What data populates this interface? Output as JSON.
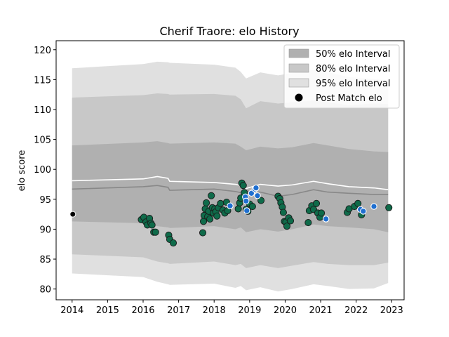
{
  "chart_data": {
    "type": "scatter",
    "title": "Cherif Traore: elo History",
    "xlabel": "",
    "ylabel": "elo score",
    "xlim": [
      2013.55,
      2023.35
    ],
    "ylim": [
      78.2,
      121.5
    ],
    "x_ticks": [
      "2014",
      "2015",
      "2016",
      "2017",
      "2018",
      "2019",
      "2020",
      "2021",
      "2022",
      "2023"
    ],
    "y_ticks": [
      "80",
      "85",
      "90",
      "95",
      "100",
      "105",
      "110",
      "115",
      "120"
    ],
    "legend_position": "top-right",
    "legend": [
      {
        "label": "50% elo Interval",
        "color": "#b0b0b0"
      },
      {
        "label": "80% elo Interval",
        "color": "#c8c8c8"
      },
      {
        "label": "95% elo Interval",
        "color": "#e0e0e0"
      },
      {
        "label": "Post Match elo",
        "color": "#000000"
      }
    ],
    "colors": {
      "band_50": "#b0b0b0",
      "band_80": "#c8c8c8",
      "band_95": "#e0e0e0",
      "median_line": "#888888",
      "upper_line": "#ffffff",
      "point_green": "#0f6b4a",
      "point_blue": "#1f6fd0"
    },
    "band_x": [
      2014.0,
      2016.0,
      2016.4,
      2016.7,
      2016.75,
      2018.0,
      2018.6,
      2018.75,
      2018.9,
      2019.3,
      2019.8,
      2020.2,
      2020.8,
      2021.2,
      2021.8,
      2022.5,
      2022.9
    ],
    "median": [
      96.7,
      97.1,
      97.3,
      97.0,
      96.5,
      96.7,
      96.3,
      96.1,
      96.4,
      96.2,
      95.5,
      95.8,
      96.6,
      96.2,
      96.0,
      95.8,
      95.8
    ],
    "upper_white": [
      98.1,
      98.4,
      98.8,
      98.5,
      98.0,
      97.8,
      97.5,
      97.3,
      96.8,
      97.5,
      97.2,
      97.4,
      98.0,
      97.6,
      97.1,
      96.9,
      96.6
    ],
    "band_50": [
      [
        91.3,
        104.0
      ],
      [
        91.0,
        104.5
      ],
      [
        90.5,
        104.7
      ],
      [
        90.3,
        104.4
      ],
      [
        90.2,
        104.3
      ],
      [
        90.5,
        104.5
      ],
      [
        90.0,
        104.3
      ],
      [
        90.3,
        103.8
      ],
      [
        89.5,
        103.2
      ],
      [
        90.0,
        103.8
      ],
      [
        89.6,
        103.5
      ],
      [
        90.0,
        103.7
      ],
      [
        90.8,
        104.4
      ],
      [
        90.5,
        104.0
      ],
      [
        90.3,
        103.4
      ],
      [
        90.0,
        103.0
      ],
      [
        89.5,
        102.9
      ]
    ],
    "band_80": [
      [
        85.8,
        112.0
      ],
      [
        85.3,
        112.4
      ],
      [
        84.6,
        112.7
      ],
      [
        84.3,
        112.6
      ],
      [
        84.2,
        112.5
      ],
      [
        84.6,
        112.6
      ],
      [
        84.0,
        112.3
      ],
      [
        84.2,
        111.7
      ],
      [
        83.5,
        110.2
      ],
      [
        84.0,
        111.4
      ],
      [
        83.5,
        111.0
      ],
      [
        83.9,
        111.2
      ],
      [
        84.5,
        111.5
      ],
      [
        84.2,
        111.2
      ],
      [
        84.0,
        110.7
      ],
      [
        84.0,
        111.0
      ],
      [
        84.4,
        110.9
      ]
    ],
    "band_95": [
      [
        82.6,
        116.9
      ],
      [
        82.0,
        117.6
      ],
      [
        81.2,
        118.0
      ],
      [
        80.8,
        117.9
      ],
      [
        80.7,
        117.8
      ],
      [
        80.9,
        117.5
      ],
      [
        80.2,
        117.0
      ],
      [
        80.5,
        116.3
      ],
      [
        79.8,
        115.2
      ],
      [
        80.3,
        116.2
      ],
      [
        79.6,
        115.7
      ],
      [
        80.0,
        116.1
      ],
      [
        80.8,
        116.6
      ],
      [
        80.5,
        116.3
      ],
      [
        80.0,
        115.4
      ],
      [
        80.1,
        115.1
      ],
      [
        81.0,
        114.9
      ]
    ],
    "points_black": [
      {
        "x": 2014.02,
        "y": 92.5
      }
    ],
    "points_green": [
      {
        "x": 2015.95,
        "y": 91.6
      },
      {
        "x": 2016.02,
        "y": 92.0
      },
      {
        "x": 2016.08,
        "y": 91.2
      },
      {
        "x": 2016.12,
        "y": 90.7
      },
      {
        "x": 2016.18,
        "y": 91.8
      },
      {
        "x": 2016.22,
        "y": 91.0
      },
      {
        "x": 2016.25,
        "y": 90.7
      },
      {
        "x": 2016.3,
        "y": 89.5
      },
      {
        "x": 2016.35,
        "y": 89.5
      },
      {
        "x": 2016.72,
        "y": 89.0
      },
      {
        "x": 2016.75,
        "y": 88.3
      },
      {
        "x": 2016.85,
        "y": 87.7
      },
      {
        "x": 2017.68,
        "y": 89.4
      },
      {
        "x": 2017.7,
        "y": 91.3
      },
      {
        "x": 2017.72,
        "y": 92.3
      },
      {
        "x": 2017.75,
        "y": 93.4
      },
      {
        "x": 2017.78,
        "y": 94.4
      },
      {
        "x": 2017.82,
        "y": 92.1
      },
      {
        "x": 2017.85,
        "y": 93.0
      },
      {
        "x": 2017.88,
        "y": 91.7
      },
      {
        "x": 2017.92,
        "y": 95.6
      },
      {
        "x": 2017.95,
        "y": 93.6
      },
      {
        "x": 2017.98,
        "y": 92.7
      },
      {
        "x": 2018.02,
        "y": 93.4
      },
      {
        "x": 2018.05,
        "y": 92.9
      },
      {
        "x": 2018.08,
        "y": 92.2
      },
      {
        "x": 2018.12,
        "y": 93.6
      },
      {
        "x": 2018.18,
        "y": 94.3
      },
      {
        "x": 2018.25,
        "y": 93.2
      },
      {
        "x": 2018.3,
        "y": 92.7
      },
      {
        "x": 2018.35,
        "y": 94.5
      },
      {
        "x": 2018.38,
        "y": 93.1
      },
      {
        "x": 2018.68,
        "y": 93.4
      },
      {
        "x": 2018.72,
        "y": 94.4
      },
      {
        "x": 2018.75,
        "y": 95.2
      },
      {
        "x": 2018.78,
        "y": 97.7
      },
      {
        "x": 2018.82,
        "y": 97.3
      },
      {
        "x": 2018.85,
        "y": 96.1
      },
      {
        "x": 2018.9,
        "y": 93.3
      },
      {
        "x": 2018.95,
        "y": 93.0
      },
      {
        "x": 2019.0,
        "y": 94.2
      },
      {
        "x": 2019.08,
        "y": 93.8
      },
      {
        "x": 2019.32,
        "y": 94.8
      },
      {
        "x": 2019.8,
        "y": 95.5
      },
      {
        "x": 2019.85,
        "y": 95.1
      },
      {
        "x": 2019.88,
        "y": 94.4
      },
      {
        "x": 2019.92,
        "y": 93.7
      },
      {
        "x": 2019.95,
        "y": 92.8
      },
      {
        "x": 2019.98,
        "y": 91.3
      },
      {
        "x": 2020.02,
        "y": 91.2
      },
      {
        "x": 2020.05,
        "y": 90.5
      },
      {
        "x": 2020.1,
        "y": 91.9
      },
      {
        "x": 2020.15,
        "y": 91.4
      },
      {
        "x": 2020.65,
        "y": 91.1
      },
      {
        "x": 2020.68,
        "y": 93.1
      },
      {
        "x": 2020.75,
        "y": 93.9
      },
      {
        "x": 2020.8,
        "y": 93.3
      },
      {
        "x": 2020.88,
        "y": 94.3
      },
      {
        "x": 2020.92,
        "y": 92.7
      },
      {
        "x": 2020.98,
        "y": 92.0
      },
      {
        "x": 2021.02,
        "y": 92.7
      },
      {
        "x": 2021.75,
        "y": 92.8
      },
      {
        "x": 2021.8,
        "y": 93.4
      },
      {
        "x": 2021.95,
        "y": 93.8
      },
      {
        "x": 2022.05,
        "y": 94.3
      },
      {
        "x": 2022.15,
        "y": 92.4
      },
      {
        "x": 2022.92,
        "y": 93.6
      }
    ],
    "points_blue": [
      {
        "x": 2018.45,
        "y": 93.9
      },
      {
        "x": 2018.88,
        "y": 95.4
      },
      {
        "x": 2018.9,
        "y": 94.7
      },
      {
        "x": 2018.92,
        "y": 93.1
      },
      {
        "x": 2019.05,
        "y": 96.0
      },
      {
        "x": 2019.15,
        "y": 96.7
      },
      {
        "x": 2019.18,
        "y": 96.9
      },
      {
        "x": 2019.22,
        "y": 95.6
      },
      {
        "x": 2021.15,
        "y": 91.7
      },
      {
        "x": 2022.12,
        "y": 93.3
      },
      {
        "x": 2022.2,
        "y": 93.0
      },
      {
        "x": 2022.5,
        "y": 93.8
      }
    ]
  }
}
